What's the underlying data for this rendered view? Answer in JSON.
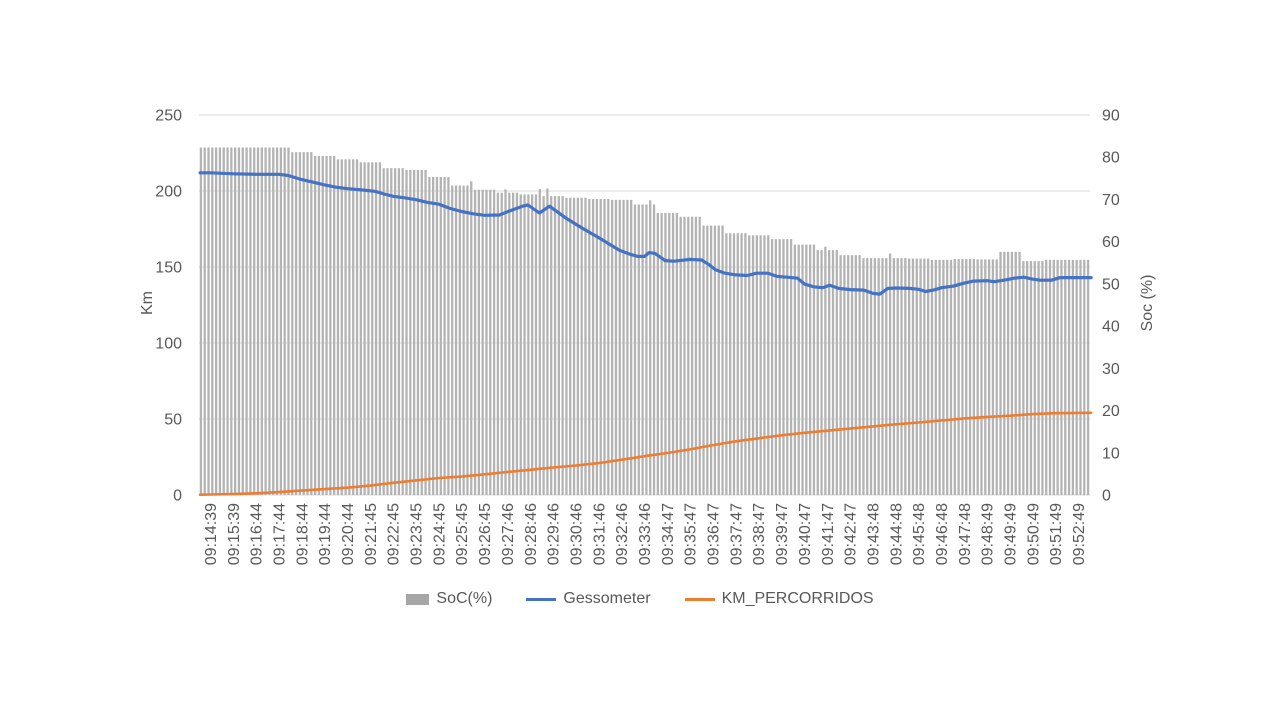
{
  "colors": {
    "background": "#ffffff",
    "grid": "#d9d9d9",
    "axis_text": "#595959",
    "bar_fill": "#b3b3b3",
    "bar_legend": "#a6a6a6",
    "line_blue": "#4472c4",
    "line_orange": "#ed7d31"
  },
  "chart_data": {
    "type": "combo",
    "title": "",
    "grid": "horizontal",
    "legend_position": "bottom",
    "left_axis": {
      "label": "Km",
      "min": 0,
      "max": 250,
      "ticks": [
        0,
        50,
        100,
        150,
        200,
        250
      ]
    },
    "right_axis": {
      "label": "Soc (%)",
      "min": 0,
      "max": 90,
      "ticks": [
        0,
        10,
        20,
        30,
        40,
        50,
        60,
        70,
        80,
        90
      ]
    },
    "categories": [
      "09:14:39",
      "09:15:39",
      "09:16:44",
      "09:17:44",
      "09:18:44",
      "09:19:44",
      "09:20:44",
      "09:21:45",
      "09:22:45",
      "09:23:45",
      "09:24:45",
      "09:25:45",
      "09:26:45",
      "09:27:46",
      "09:28:46",
      "09:29:46",
      "09:30:46",
      "09:31:46",
      "09:32:46",
      "09:33:46",
      "09:34:47",
      "09:35:47",
      "09:36:47",
      "09:37:47",
      "09:38:47",
      "09:39:47",
      "09:40:47",
      "09:41:47",
      "09:42:47",
      "09:43:48",
      "09:44:48",
      "09:45:48",
      "09:46:48",
      "09:47:48",
      "09:48:49",
      "09:49:49",
      "09:50:49",
      "09:51:49",
      "09:52:49"
    ],
    "bars_per_category": 6,
    "series": [
      {
        "name": "SoC(%)",
        "type": "bar",
        "axis": "right",
        "color": "#b3b3b3",
        "legend_color": "#a6a6a6",
        "values_pct": [
          82.3,
          82.3,
          82.3,
          82.3,
          81.2,
          80.3,
          79.5,
          78.8,
          77.4,
          77.0,
          75.3,
          73.3,
          72.3,
          71.6,
          71.2,
          70.8,
          70.4,
          70.1,
          69.9,
          68.8,
          66.8,
          65.9,
          63.8,
          62.0,
          61.5,
          60.6,
          59.3,
          58.0,
          56.8,
          56.1,
          56.1,
          56.0,
          55.7,
          55.9,
          55.8,
          57.6,
          55.4,
          55.7,
          55.7
        ]
      },
      {
        "name": "Gessometer",
        "type": "line",
        "axis": "left",
        "color": "#4472c4",
        "width": 3.2,
        "points": [
          [
            -0.45,
            212
          ],
          [
            0,
            212
          ],
          [
            1,
            211.3
          ],
          [
            2,
            211
          ],
          [
            3,
            211
          ],
          [
            3.4,
            210.2
          ],
          [
            4,
            207.5
          ],
          [
            4.5,
            205.8
          ],
          [
            5,
            204
          ],
          [
            5.5,
            202.5
          ],
          [
            6,
            201.5
          ],
          [
            6.6,
            200.7
          ],
          [
            7.2,
            199.8
          ],
          [
            7.6,
            198
          ],
          [
            8,
            196.5
          ],
          [
            8.5,
            195.5
          ],
          [
            9,
            194.3
          ],
          [
            9.5,
            192.5
          ],
          [
            10,
            191.3
          ],
          [
            10.5,
            188.5
          ],
          [
            11,
            186.5
          ],
          [
            11.5,
            185
          ],
          [
            12,
            184
          ],
          [
            12.65,
            184.2
          ],
          [
            13,
            186.3
          ],
          [
            13.66,
            190
          ],
          [
            13.9,
            190.8
          ],
          [
            14.4,
            185.5
          ],
          [
            14.84,
            190
          ],
          [
            15.58,
            182
          ],
          [
            16.28,
            175.5
          ],
          [
            17.03,
            169
          ],
          [
            17.9,
            161
          ],
          [
            18.35,
            158.5
          ],
          [
            18.7,
            157
          ],
          [
            19,
            157
          ],
          [
            19.2,
            159.5
          ],
          [
            19.45,
            159
          ],
          [
            19.9,
            154.2
          ],
          [
            20.3,
            153.8
          ],
          [
            21,
            155
          ],
          [
            21.5,
            154.6
          ],
          [
            21.8,
            151.8
          ],
          [
            22.1,
            148.3
          ],
          [
            22.5,
            146
          ],
          [
            23,
            144.8
          ],
          [
            23.5,
            144.4
          ],
          [
            23.9,
            145.9
          ],
          [
            24.4,
            145.9
          ],
          [
            24.8,
            143.8
          ],
          [
            25.3,
            143.2
          ],
          [
            25.7,
            142.6
          ],
          [
            26,
            138.8
          ],
          [
            26.4,
            137
          ],
          [
            26.8,
            136.4
          ],
          [
            27.1,
            138
          ],
          [
            27.5,
            135.9
          ],
          [
            28,
            135.1
          ],
          [
            28.6,
            134.8
          ],
          [
            29,
            132.6
          ],
          [
            29.3,
            132.2
          ],
          [
            29.65,
            135.9
          ],
          [
            30,
            136.2
          ],
          [
            30.6,
            135.9
          ],
          [
            31,
            135.3
          ],
          [
            31.3,
            133.9
          ],
          [
            31.7,
            135
          ],
          [
            32,
            136.4
          ],
          [
            32.5,
            137.4
          ],
          [
            33,
            139.4
          ],
          [
            33.4,
            140.7
          ],
          [
            34,
            141
          ],
          [
            34.3,
            140.3
          ],
          [
            34.8,
            141.5
          ],
          [
            35.2,
            142.7
          ],
          [
            35.6,
            143.3
          ],
          [
            36,
            142
          ],
          [
            36.3,
            141.4
          ],
          [
            36.8,
            141.3
          ],
          [
            37.2,
            143
          ],
          [
            38,
            143
          ],
          [
            38.55,
            143
          ]
        ]
      },
      {
        "name": "KM_PERCORRIDOS",
        "type": "line",
        "axis": "left",
        "color": "#ed7d31",
        "width": 2.6,
        "points": [
          [
            -0.45,
            0.2
          ],
          [
            0,
            0.3
          ],
          [
            1,
            0.6
          ],
          [
            2,
            1.1
          ],
          [
            3,
            1.9
          ],
          [
            4,
            2.9
          ],
          [
            5,
            3.9
          ],
          [
            6,
            4.8
          ],
          [
            7,
            6.2
          ],
          [
            8,
            8.0
          ],
          [
            9,
            9.6
          ],
          [
            10,
            11.2
          ],
          [
            11,
            12.1
          ],
          [
            12,
            13.6
          ],
          [
            13,
            15.1
          ],
          [
            14,
            16.6
          ],
          [
            15,
            18.1
          ],
          [
            16,
            19.4
          ],
          [
            17,
            21.0
          ],
          [
            18,
            23.2
          ],
          [
            19,
            25.5
          ],
          [
            20,
            27.6
          ],
          [
            21,
            30.0
          ],
          [
            22,
            32.8
          ],
          [
            23,
            35.3
          ],
          [
            24,
            37.3
          ],
          [
            25,
            39.3
          ],
          [
            26,
            40.9
          ],
          [
            27,
            42.3
          ],
          [
            28,
            43.7
          ],
          [
            29,
            45.1
          ],
          [
            30,
            46.5
          ],
          [
            31,
            47.7
          ],
          [
            32,
            49.0
          ],
          [
            33,
            50.4
          ],
          [
            34,
            51.4
          ],
          [
            35,
            52.2
          ],
          [
            36,
            53.2
          ],
          [
            37,
            53.8
          ],
          [
            38,
            54.0
          ],
          [
            38.55,
            54.1
          ]
        ]
      }
    ],
    "bar_spikes": [
      {
        "bar": 71,
        "add_pct": 1.0
      },
      {
        "bar": 80,
        "add_pct": 0.8
      },
      {
        "bar": 89,
        "add_pct": 1.3
      },
      {
        "bar": 91,
        "add_pct": 1.8
      },
      {
        "bar": 118,
        "add_pct": 1.0
      },
      {
        "bar": 164,
        "add_pct": 0.8
      },
      {
        "bar": 181,
        "add_pct": 1.1
      }
    ]
  }
}
